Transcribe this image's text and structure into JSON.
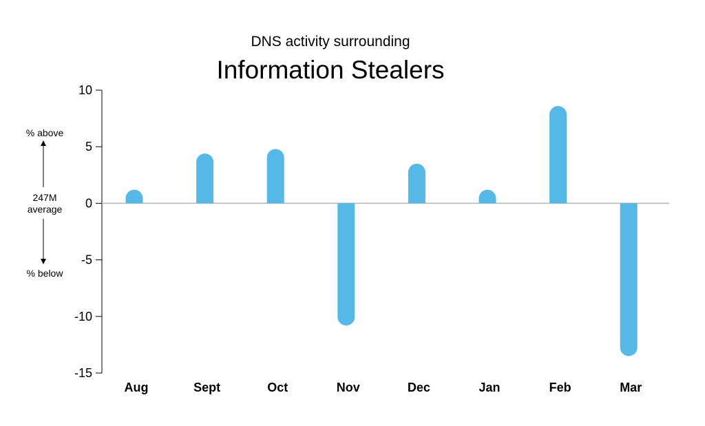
{
  "chart_data": {
    "type": "bar",
    "subtitle": "DNS activity surrounding",
    "title": "Information Stealers",
    "categories": [
      "Aug",
      "Sept",
      "Oct",
      "Nov",
      "Dec",
      "Jan",
      "Feb",
      "Mar"
    ],
    "values": [
      1.2,
      4.4,
      4.8,
      -10.8,
      3.5,
      1.2,
      8.6,
      -13.5
    ],
    "ylim": [
      -15,
      10
    ],
    "yticks": [
      "10",
      "5",
      "0",
      "-5",
      "-10",
      "-15"
    ],
    "ytick_values": [
      10,
      5,
      0,
      -5,
      -10,
      -15
    ],
    "grid": false,
    "bar_color": "#56b8e6",
    "side_annotation": {
      "above": "% above",
      "center_line1": "247M",
      "center_line2": "average",
      "below": "% below"
    }
  }
}
